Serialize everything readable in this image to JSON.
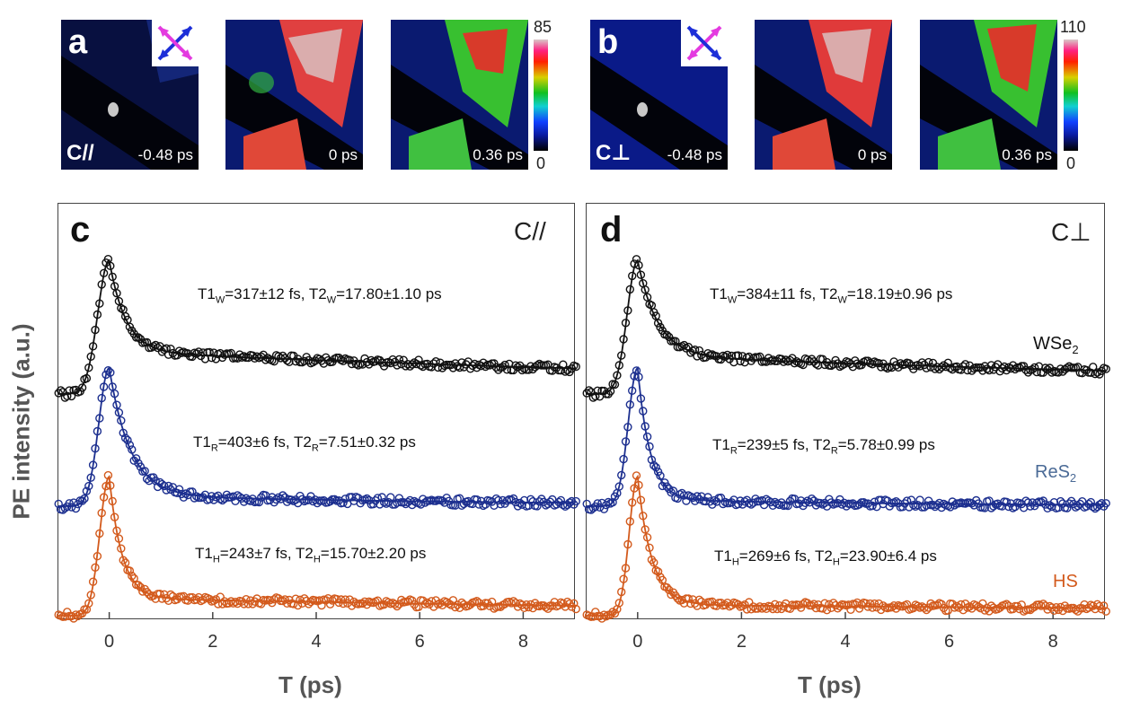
{
  "tiles": {
    "a": {
      "panel_letter": "a",
      "mode_label": "C//",
      "delays": [
        "-0.48 ps",
        "0 ps",
        "0.36 ps"
      ],
      "colorbar_max": "85",
      "colorbar_min": "0"
    },
    "b": {
      "panel_letter": "b",
      "mode_label": "C⊥",
      "delays": [
        "-0.48 ps",
        "0 ps",
        "0.36 ps"
      ],
      "colorbar_max": "110",
      "colorbar_min": "0"
    }
  },
  "y_axis_title": "PE intensity (a.u.)",
  "colors": {
    "WSe2": "#111111",
    "ReS2": "#1c2f8f",
    "HS": "#d35a1c"
  },
  "chart_data": [
    {
      "type": "scatter",
      "panel": "c",
      "mode": "C//",
      "xlabel": "T (ps)",
      "xlim": [
        -1,
        9
      ],
      "xticks": [
        "0",
        "2",
        "4",
        "6",
        "8"
      ],
      "series": [
        {
          "name": "WSe2",
          "peak_t": 0.0,
          "rise": 0.22,
          "baseline": 0.0,
          "peak": 0.63,
          "plateau": 0.2,
          "tau1": 0.317,
          "tau2": 17.8,
          "fit_text": {
            "t1": "T1",
            "sub1": "W",
            "v1": "=317±12 fs, ",
            "t2": "T2",
            "sub2": "W",
            "v2": "=17.80±1.10 ps"
          }
        },
        {
          "name": "ReS2",
          "peak_t": 0.0,
          "rise": 0.2,
          "baseline": 0.0,
          "peak": 0.63,
          "plateau": 0.05,
          "tau1": 0.403,
          "tau2": 7.51,
          "fit_text": {
            "t1": "T1",
            "sub1": "R",
            "v1": "=403±6 fs, ",
            "t2": "T2",
            "sub2": "R",
            "v2": "=7.51±0.32 ps"
          }
        },
        {
          "name": "HS",
          "peak_t": 0.0,
          "rise": 0.18,
          "baseline": 0.0,
          "peak": 0.63,
          "plateau": 0.08,
          "tau1": 0.243,
          "tau2": 15.7,
          "fit_text": {
            "t1": "T1",
            "sub1": "H",
            "v1": "=243±7 fs, ",
            "t2": "T2",
            "sub2": "H",
            "v2": "=15.70±2.20 ps"
          }
        }
      ]
    },
    {
      "type": "scatter",
      "panel": "d",
      "mode": "C⊥",
      "xlabel": "T (ps)",
      "xlim": [
        -1,
        9
      ],
      "xticks": [
        "0",
        "2",
        "4",
        "6",
        "8"
      ],
      "series": [
        {
          "name": "WSe2",
          "label_text": "WSe",
          "label_sub": "2",
          "peak_t": 0.0,
          "rise": 0.2,
          "baseline": 0.0,
          "peak": 0.63,
          "plateau": 0.18,
          "tau1": 0.384,
          "tau2": 18.19,
          "fit_text": {
            "t1": "T1",
            "sub1": "W",
            "v1": "=384±11 fs, ",
            "t2": "T2",
            "sub2": "W",
            "v2": "=18.19±0.96 ps"
          }
        },
        {
          "name": "ReS2",
          "label_text": "ReS",
          "label_sub": "2",
          "peak_t": 0.0,
          "rise": 0.18,
          "baseline": 0.0,
          "peak": 0.63,
          "plateau": 0.03,
          "tau1": 0.239,
          "tau2": 5.78,
          "fit_text": {
            "t1": "T1",
            "sub1": "R",
            "v1": "=239±5 fs, ",
            "t2": "T2",
            "sub2": "R",
            "v2": "=5.78±0.99 ps"
          }
        },
        {
          "name": "HS",
          "label_text": "HS",
          "label_sub": "",
          "peak_t": 0.0,
          "rise": 0.16,
          "baseline": 0.0,
          "peak": 0.63,
          "plateau": 0.05,
          "tau1": 0.269,
          "tau2": 23.9,
          "fit_text": {
            "t1": "T1",
            "sub1": "H",
            "v1": "=269±6 fs, ",
            "t2": "T2",
            "sub2": "H",
            "v2": "=23.90±6.4 ps"
          }
        }
      ]
    }
  ]
}
